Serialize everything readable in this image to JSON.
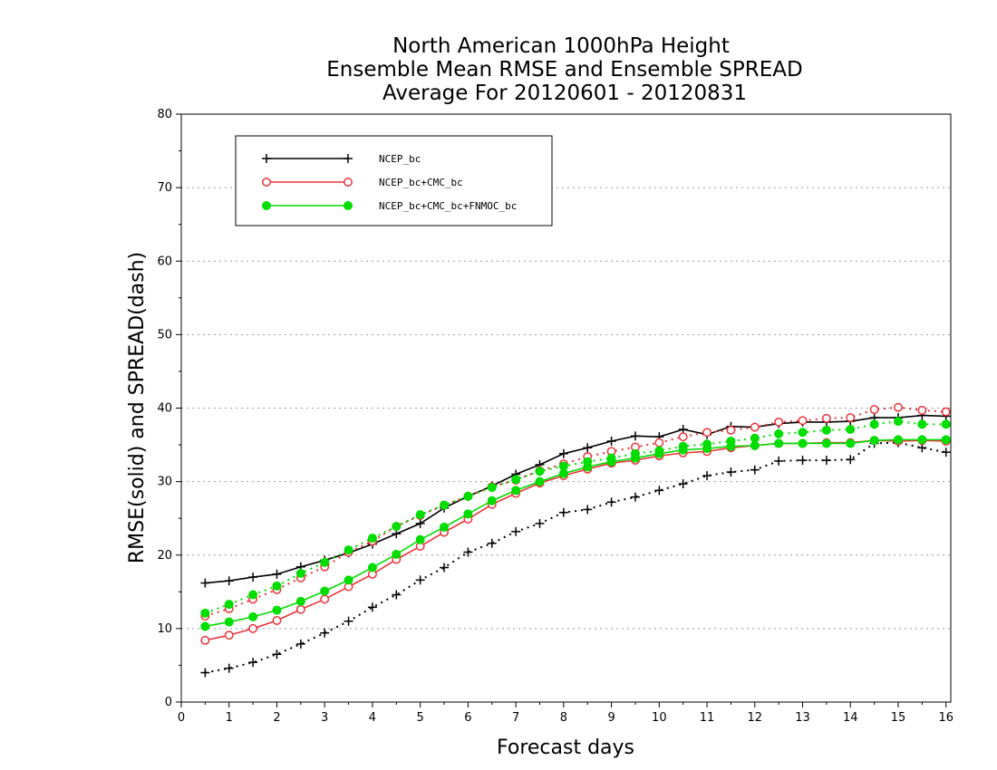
{
  "chart_data": {
    "type": "line",
    "title": [
      "North American 1000hPa Height",
      "Ensemble Mean RMSE and Ensemble SPREAD",
      "Average For 20120601 - 20120831"
    ],
    "xlabel": "Forecast days",
    "ylabel": "RMSE(solid) and SPREAD(dash)",
    "xlim": [
      0,
      16.1
    ],
    "ylim": [
      0,
      80
    ],
    "xticks": [
      "0",
      "1",
      "2",
      "3",
      "4",
      "5",
      "6",
      "7",
      "8",
      "9",
      "10",
      "11",
      "12",
      "13",
      "14",
      "15",
      "16"
    ],
    "yticks": [
      "0",
      "10",
      "20",
      "30",
      "40",
      "50",
      "60",
      "70",
      "80"
    ],
    "grid": true,
    "legend_position": "top-left",
    "x": [
      0.5,
      1,
      1.5,
      2,
      2.5,
      3,
      3.5,
      4,
      4.5,
      5,
      5.5,
      6,
      6.5,
      7,
      7.5,
      8,
      8.5,
      9,
      9.5,
      10,
      10.5,
      11,
      11.5,
      12,
      12.5,
      13,
      13.5,
      14,
      14.5,
      15,
      15.5,
      16
    ],
    "series": [
      {
        "name": "NCEP_bc",
        "kind": "rmse",
        "color": "#000000",
        "marker": "plus",
        "values": [
          16.2,
          16.5,
          17.0,
          17.4,
          18.4,
          19.3,
          20.3,
          21.5,
          22.9,
          24.3,
          26.4,
          28.0,
          29.4,
          31.0,
          32.3,
          33.8,
          34.6,
          35.5,
          36.2,
          36.1,
          37.1,
          36.4,
          37.5,
          37.4,
          37.9,
          38.1,
          38.1,
          38.2,
          38.7,
          38.7,
          39.0,
          38.9
        ]
      },
      {
        "name": "NCEP_bc",
        "kind": "spread",
        "color": "#000000",
        "marker": "plus",
        "values": [
          4.0,
          4.6,
          5.4,
          6.5,
          7.9,
          9.4,
          11.0,
          12.9,
          14.6,
          16.6,
          18.3,
          20.4,
          21.6,
          23.2,
          24.3,
          25.8,
          26.2,
          27.2,
          27.9,
          28.8,
          29.7,
          30.8,
          31.3,
          31.6,
          32.8,
          32.9,
          32.9,
          33.0,
          35.2,
          35.3,
          34.6,
          34.0
        ]
      },
      {
        "name": "NCEP_bc+CMC_bc",
        "kind": "rmse",
        "color": "#e8343c",
        "marker": "open-circle",
        "values": [
          8.4,
          9.1,
          10.0,
          11.1,
          12.6,
          14.0,
          15.7,
          17.4,
          19.4,
          21.2,
          23.1,
          24.9,
          26.9,
          28.4,
          29.8,
          30.8,
          31.7,
          32.5,
          32.9,
          33.5,
          33.9,
          34.1,
          34.6,
          34.9,
          35.2,
          35.2,
          35.3,
          35.3,
          35.6,
          35.5,
          35.6,
          35.5
        ]
      },
      {
        "name": "NCEP_bc+CMC_bc",
        "kind": "spread",
        "color": "#e8343c",
        "marker": "open-circle",
        "values": [
          11.7,
          12.7,
          14.0,
          15.3,
          16.9,
          18.4,
          20.4,
          21.9,
          23.9,
          25.4,
          26.8,
          28.0,
          29.3,
          30.2,
          31.5,
          32.4,
          33.4,
          34.1,
          34.7,
          35.3,
          36.1,
          36.7,
          37.0,
          37.4,
          38.1,
          38.3,
          38.6,
          38.7,
          39.8,
          40.1,
          39.7,
          39.5
        ]
      },
      {
        "name": "NCEP_bc+CMC_bc+FNMOC_bc",
        "kind": "rmse",
        "color": "#00dd00",
        "marker": "filled-circle",
        "values": [
          10.3,
          10.9,
          11.6,
          12.5,
          13.7,
          15.1,
          16.6,
          18.3,
          20.1,
          22.1,
          23.8,
          25.6,
          27.4,
          28.8,
          30.0,
          31.1,
          32.0,
          32.7,
          33.2,
          33.8,
          34.3,
          34.5,
          34.8,
          34.9,
          35.2,
          35.2,
          35.2,
          35.2,
          35.6,
          35.7,
          35.7,
          35.7
        ]
      },
      {
        "name": "NCEP_bc+CMC_bc+FNMOC_bc",
        "kind": "spread",
        "color": "#00dd00",
        "marker": "filled-circle",
        "values": [
          12.1,
          13.3,
          14.6,
          15.8,
          17.5,
          19.0,
          20.7,
          22.3,
          23.9,
          25.5,
          26.8,
          28.0,
          29.2,
          30.3,
          31.4,
          32.1,
          32.7,
          33.2,
          33.8,
          34.2,
          34.8,
          35.1,
          35.5,
          35.9,
          36.5,
          36.7,
          37.0,
          37.1,
          37.8,
          38.2,
          37.8,
          37.8
        ]
      }
    ]
  }
}
